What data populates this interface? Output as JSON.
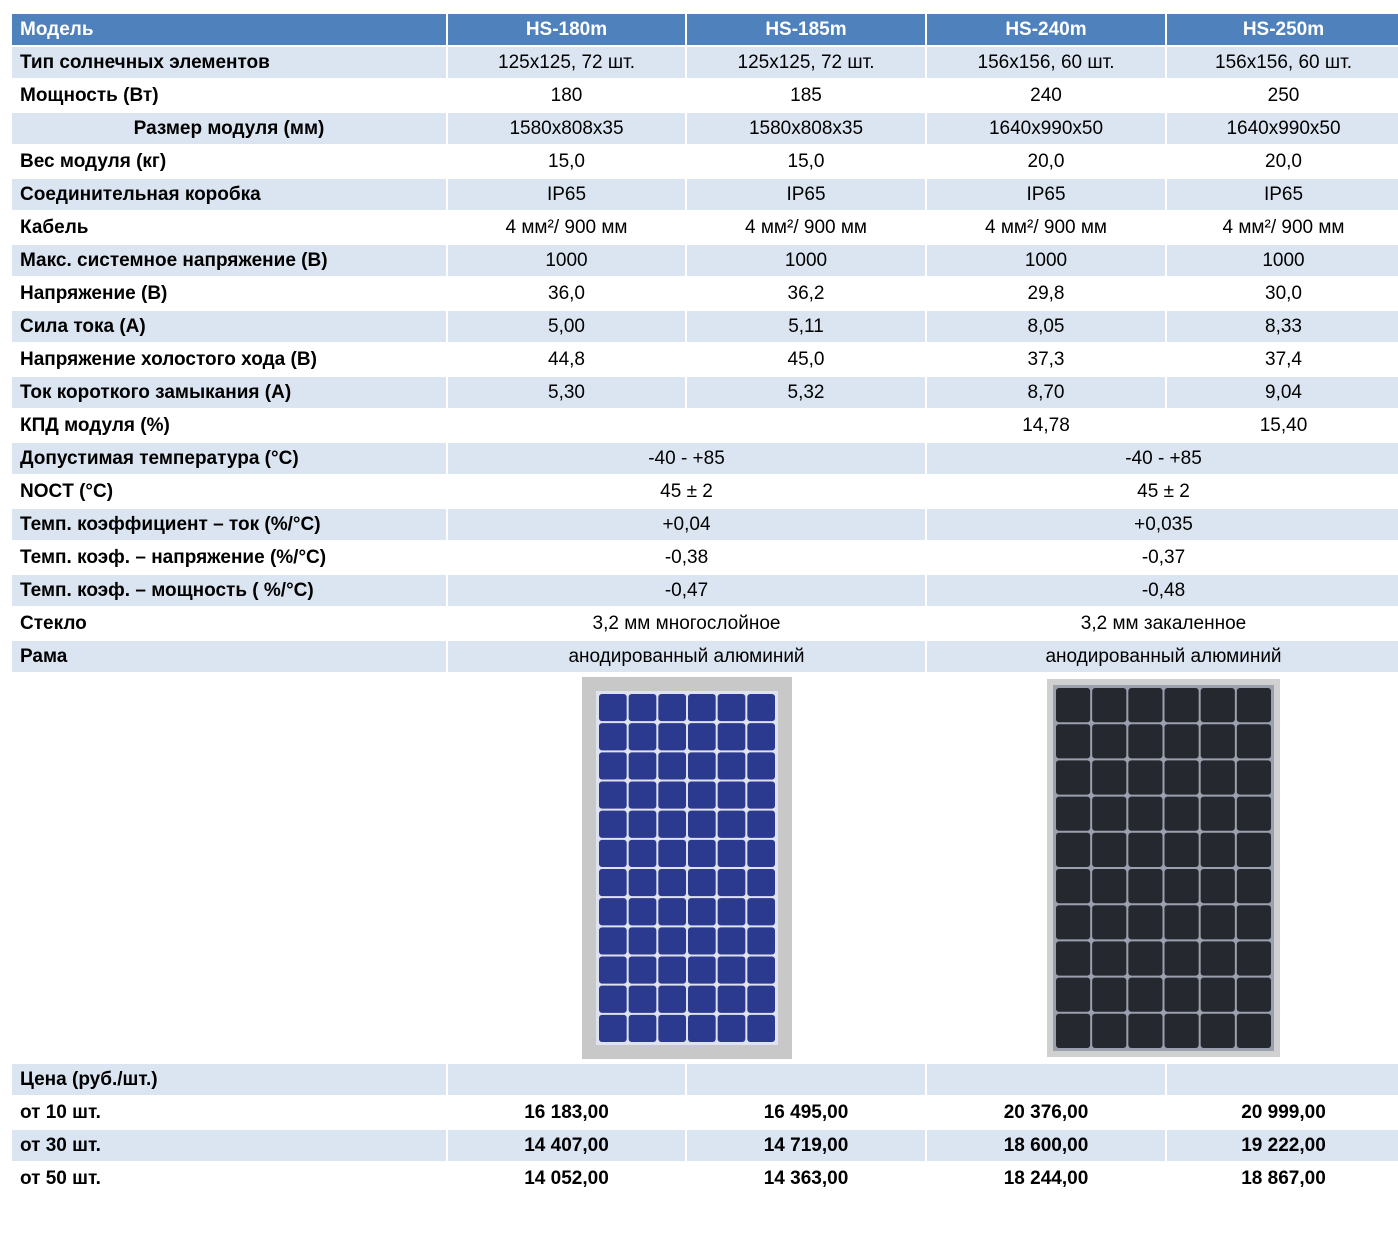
{
  "table": {
    "header": [
      "Модель",
      "HS-180m",
      "HS-185m",
      "HS-240m",
      "HS-250m"
    ],
    "rows": [
      [
        "Тип солнечных элементов",
        "125x125, 72 шт.",
        "125x125, 72 шт.",
        "156x156, 60 шт.",
        "156x156, 60 шт."
      ],
      [
        "Мощность (Вт)",
        "180",
        "185",
        "240",
        "250"
      ],
      [
        "Размер модуля (мм)",
        "1580x808x35",
        "1580x808x35",
        "1640x990x50",
        "1640x990x50"
      ],
      [
        "Вес модуля (кг)",
        "15,0",
        "15,0",
        "20,0",
        "20,0"
      ],
      [
        "Соединительная коробка",
        "IP65",
        "IP65",
        "IP65",
        "IP65"
      ],
      [
        "Кабель",
        "4 мм²/ 900 мм",
        "4 мм²/ 900 мм",
        "4 мм²/ 900 мм",
        "4 мм²/ 900 мм"
      ],
      [
        "Макс. системное напряжение (В)",
        "1000",
        "1000",
        "1000",
        "1000"
      ],
      [
        "Напряжение (В)",
        "36,0",
        "36,2",
        "29,8",
        "30,0"
      ],
      [
        "Сила тока (А)",
        "5,00",
        "5,11",
        "8,05",
        "8,33"
      ],
      [
        "Напряжение холостого хода (В)",
        "44,8",
        "45,0",
        "37,3",
        "37,4"
      ],
      [
        "Ток короткого замыкания (А)",
        "5,30",
        "5,32",
        "8,70",
        "9,04"
      ],
      [
        "КПД модуля (%)",
        null,
        null,
        "14,78",
        "15,40"
      ],
      [
        "Допустимая температура (°C)",
        "-40 - +85",
        "-40 - +85"
      ],
      [
        "NOCT (°C)",
        "45 ± 2",
        "45 ± 2"
      ],
      [
        "Темп. коэффициент – ток (%/°C)",
        "+0,04",
        "+0,035"
      ],
      [
        "Темп. коэф. – напряжение (%/°C)",
        "-0,38",
        "-0,37"
      ],
      [
        "Темп. коэф. – мощность ( %/°C)",
        "-0,47",
        "-0,48"
      ],
      [
        "Стекло",
        "3,2 мм многослойное",
        "3,2 мм закаленное"
      ],
      [
        "Рама",
        "анодированный алюминий",
        "анодированный алюминий"
      ]
    ],
    "price": {
      "title": "Цена (руб./шт.)",
      "rows": [
        [
          "от 10 шт.",
          "16 183,00",
          "16 495,00",
          "20 376,00",
          "20 999,00"
        ],
        [
          "от 30 шт.",
          "14 407,00",
          "14 719,00",
          "18 600,00",
          "19 222,00"
        ],
        [
          "от 50 шт.",
          "14 052,00",
          "14 363,00",
          "18 244,00",
          "18 867,00"
        ]
      ]
    }
  }
}
